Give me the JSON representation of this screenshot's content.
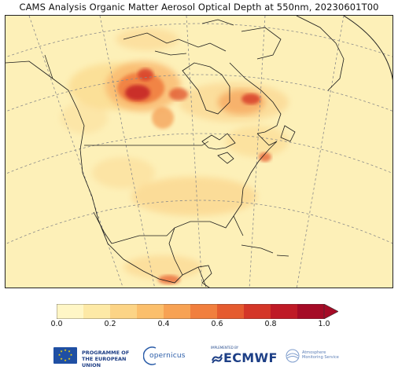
{
  "title": "CAMS Analysis Organic Matter Aerosol Optical Depth at 550nm, 20230601T00",
  "map": {
    "region": "North America",
    "variable": "Organic Matter Aerosol Optical Depth at 550nm",
    "hotspots": [
      "Northern Alberta / Saskatchewan",
      "Northern Quebec",
      "Nova Scotia",
      "Central Mexico"
    ]
  },
  "colorbar": {
    "ticks": [
      "0.0",
      "0.2",
      "0.4",
      "0.6",
      "0.8",
      "1.0"
    ],
    "colors": [
      "#fff6c6",
      "#fde9a6",
      "#fcd486",
      "#fbbf6c",
      "#f7a254",
      "#f17f3e",
      "#e55b2f",
      "#d43628",
      "#bf1a26",
      "#a50b26"
    ],
    "extend": "max"
  },
  "logos": {
    "eu_line1": "PROGRAMME OF",
    "eu_line2": "THE EUROPEAN UNION",
    "copernicus": "opernicus",
    "implemented_by": "IMPLEMENTED BY",
    "ecmwf": "ECMWF",
    "atmosphere_line1": "Atmosphere",
    "atmosphere_line2": "Monitoring Service"
  }
}
